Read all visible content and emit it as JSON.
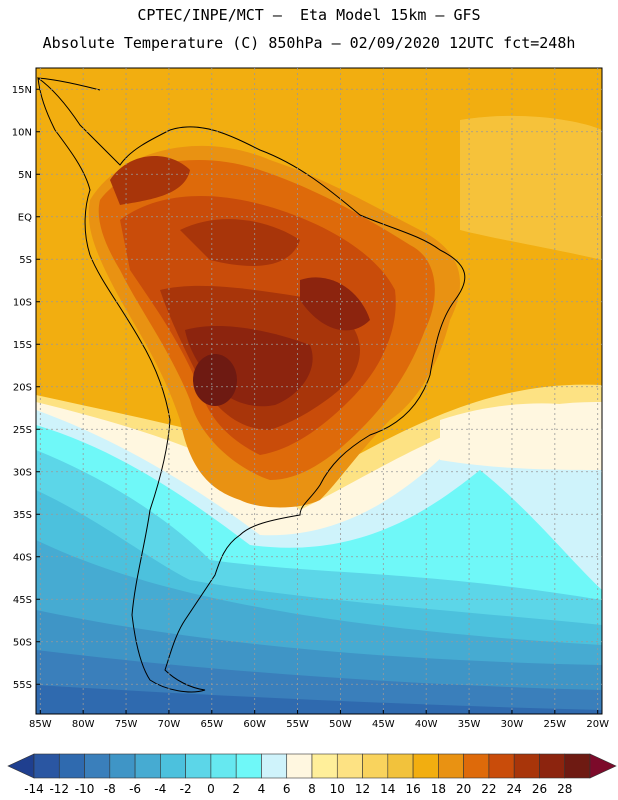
{
  "header": {
    "line1": "CPTEC/INPE/MCT –  Eta Model 15km – GFS",
    "line2": "Absolute Temperature (C) 850hPa – 02/09/2020 12UTC fct=248h"
  },
  "map": {
    "lat_labels": [
      "15N",
      "10N",
      "5N",
      "EQ",
      "5S",
      "10S",
      "15S",
      "20S",
      "25S",
      "30S",
      "35S",
      "40S",
      "45S",
      "50S",
      "55S"
    ],
    "lat_values": [
      15,
      10,
      5,
      0,
      -5,
      -10,
      -15,
      -20,
      -25,
      -30,
      -35,
      -40,
      -45,
      -50,
      -55
    ],
    "lon_labels": [
      "85W",
      "80W",
      "75W",
      "70W",
      "65W",
      "60W",
      "55W",
      "50W",
      "45W",
      "40W",
      "35W",
      "30W",
      "25W",
      "20W"
    ],
    "lon_values": [
      -85,
      -80,
      -75,
      -70,
      -65,
      -60,
      -55,
      -50,
      -45,
      -40,
      -35,
      -30,
      -25,
      -20
    ],
    "extent": {
      "lon": [
        -85.5,
        -19.5
      ],
      "lat": [
        -58.5,
        17.5
      ]
    }
  },
  "colorbar": {
    "levels": [
      "-14",
      "-12",
      "-10",
      "-8",
      "-6",
      "-4",
      "-2",
      "0",
      "2",
      "4",
      "6",
      "8",
      "10",
      "12",
      "14",
      "16",
      "18",
      "20",
      "22",
      "24",
      "26",
      "28"
    ],
    "colors": [
      "#1f3f8f",
      "#2a56a2",
      "#2f6aaf",
      "#3a7fbb",
      "#3f95c6",
      "#46abd2",
      "#4cc1dd",
      "#5cd6e8",
      "#66e8f0",
      "#6ff8f8",
      "#cff3fb",
      "#fff7e0",
      "#ffef9a",
      "#fde283",
      "#f9d35d",
      "#f2c23c",
      "#f2ae10",
      "#e99212",
      "#de6a0a",
      "#c94c0a",
      "#a8350a",
      "#8c240e",
      "#6e1a12",
      "#7c0a2a"
    ]
  }
}
